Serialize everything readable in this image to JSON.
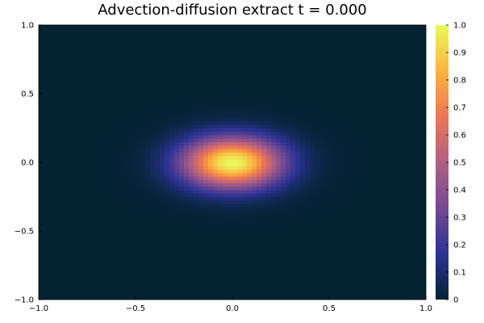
{
  "chart_data": {
    "type": "heatmap",
    "title": "Advection-diffusion extract t = 0.000",
    "xlabel": "",
    "ylabel": "",
    "xlim": [
      -1.0,
      1.0
    ],
    "ylim": [
      -1.0,
      1.0
    ],
    "x_ticks": [
      -1.0,
      -0.5,
      0.0,
      0.5,
      1.0
    ],
    "x_tick_labels": [
      "−1.0",
      "−0.5",
      "0.0",
      "0.5",
      "1.0"
    ],
    "y_ticks": [
      -1.0,
      -0.5,
      0.0,
      0.5,
      1.0
    ],
    "y_tick_labels": [
      "−1.0",
      "−0.5",
      "0.0",
      "0.5",
      "1.0"
    ],
    "grid": false,
    "field": {
      "description_of_values": "Gaussian blob",
      "center": [
        0.0,
        0.0
      ],
      "peak": 1.0,
      "sigma_x": 0.18,
      "sigma_y": 0.13,
      "resolution": 80
    },
    "colorbar": {
      "range": [
        0.0,
        1.0
      ],
      "ticks": [
        0.0,
        0.1,
        0.2,
        0.3,
        0.4,
        0.5,
        0.6,
        0.7,
        0.8,
        0.9,
        1.0
      ],
      "tick_labels": [
        "0",
        "0.1",
        "0.2",
        "0.3",
        "0.4",
        "0.5",
        "0.6",
        "0.7",
        "0.8",
        "0.9",
        "1.0"
      ],
      "colormap": "thermal",
      "colormap_stops": [
        "#042333",
        "#2c3395",
        "#744992",
        "#b15f82",
        "#eb7655",
        "#fbb43d",
        "#e8fa5b"
      ]
    }
  }
}
